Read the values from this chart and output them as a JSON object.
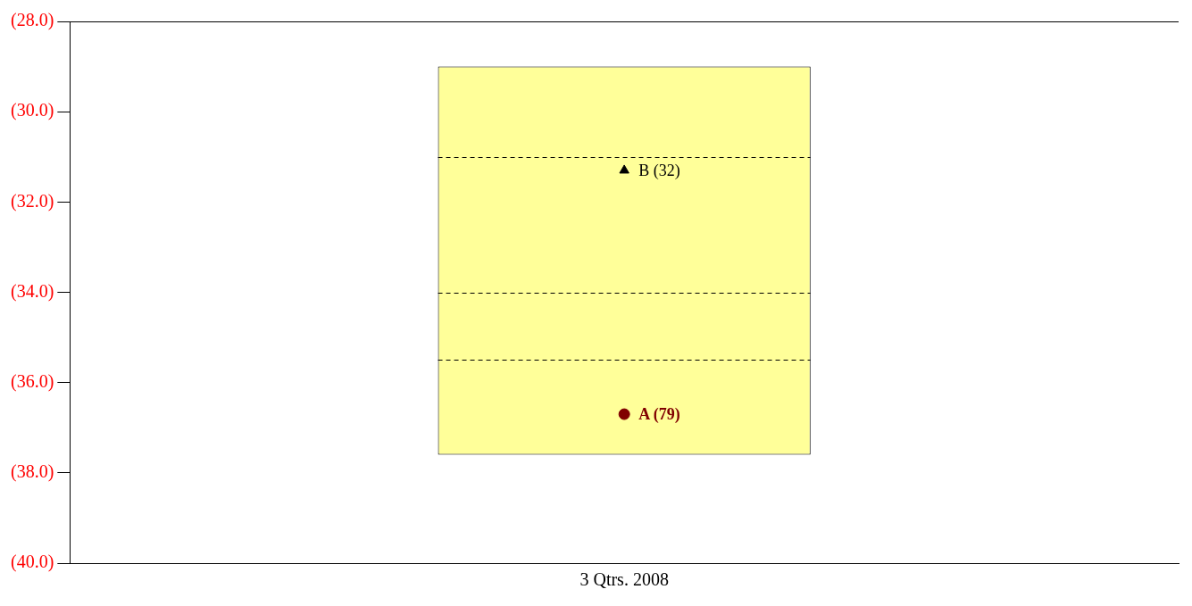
{
  "chart_data": {
    "type": "bar",
    "categories": [
      "3 Qtrs. 2008"
    ],
    "ylim": [
      -40,
      -28
    ],
    "yticks": [
      {
        "value": -40,
        "label": "(40.0)"
      },
      {
        "value": -38,
        "label": "(38.0)"
      },
      {
        "value": -36,
        "label": "(36.0)"
      },
      {
        "value": -34,
        "label": "(34.0)"
      },
      {
        "value": -32,
        "label": "(32.0)"
      },
      {
        "value": -30,
        "label": "(30.0)"
      },
      {
        "value": -28,
        "label": "(28.0)"
      }
    ],
    "grid": false,
    "legend": false,
    "ref_lines": [
      {
        "axis": "y",
        "value": -31.0,
        "color": "#000000",
        "line_style": "dashed"
      },
      {
        "axis": "y",
        "value": -34.0,
        "color": "#000000",
        "line_style": "dashed"
      },
      {
        "axis": "y",
        "value": -35.5,
        "color": "#000000",
        "line_style": "dashed"
      }
    ],
    "series": [
      {
        "color": "#ffff99",
        "base": [
          -37.6
        ],
        "values": [
          8.6
        ]
      },
      {
        "type": "scatter",
        "name": "A (79)",
        "color": "#800000",
        "marker": "circle",
        "x": [
          "3 Qtrs. 2008"
        ],
        "values": [
          -36.7
        ]
      },
      {
        "type": "scatter",
        "name": "B (32)",
        "color": "#000000",
        "marker": "triangle",
        "x": [
          "3 Qtrs. 2008"
        ],
        "values": [
          -31.3
        ]
      }
    ]
  }
}
